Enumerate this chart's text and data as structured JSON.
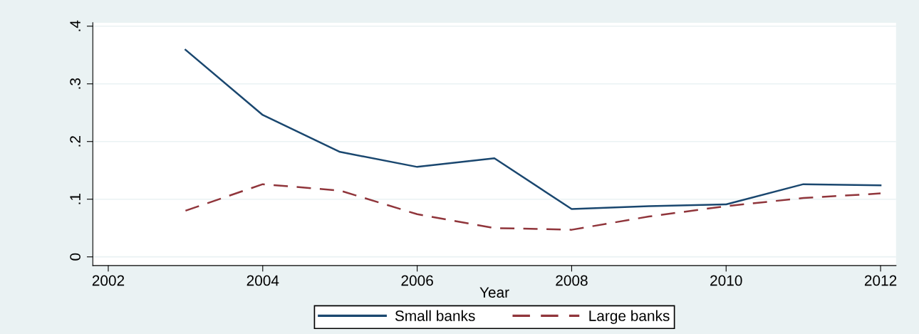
{
  "chart_data": {
    "type": "line",
    "xlabel": "Year",
    "x": [
      2003,
      2004,
      2005,
      2006,
      2007,
      2008,
      2009,
      2010,
      2011,
      2012
    ],
    "series": [
      {
        "name": "Small banks",
        "color": "#1a476f",
        "line_style": "solid",
        "values": [
          0.359,
          0.246,
          0.182,
          0.156,
          0.171,
          0.083,
          0.088,
          0.091,
          0.126,
          0.124
        ]
      },
      {
        "name": "Large banks",
        "color": "#90353b",
        "line_style": "dashed",
        "values": [
          0.08,
          0.126,
          0.115,
          0.074,
          0.05,
          0.047,
          0.07,
          0.088,
          0.102,
          0.11
        ]
      }
    ],
    "xlim": [
      2001.8,
      2012.2
    ],
    "xticks": [
      2002,
      2004,
      2006,
      2008,
      2010,
      2012
    ],
    "ylim": [
      -0.015,
      0.406
    ],
    "yticks": [
      {
        "value": 0,
        "label": "0"
      },
      {
        "value": 0.1,
        "label": ".1"
      },
      {
        "value": 0.2,
        "label": ".2"
      },
      {
        "value": 0.3,
        "label": ".3"
      },
      {
        "value": 0.4,
        "label": ".4"
      }
    ],
    "grid": "y",
    "legend": "bottom",
    "marker": "none"
  }
}
